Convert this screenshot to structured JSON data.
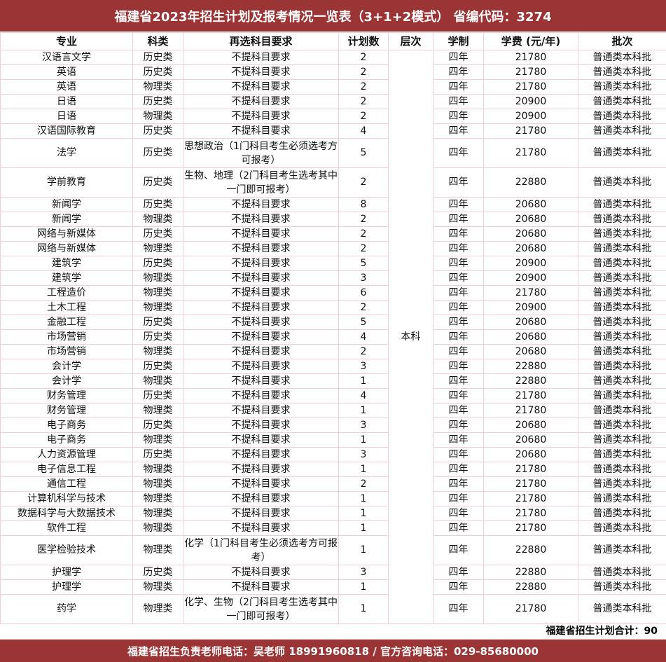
{
  "title": "福建省2023年招生计划及报考情况一览表（3+1+2模式） 省编代码：3274",
  "headers": [
    "专业",
    "科类",
    "再选科目要求",
    "计划数",
    "层次",
    "学制",
    "学费 (元/年)",
    "批次"
  ],
  "level": "本科",
  "rows": [
    [
      "汉语言文学",
      "历史类",
      "不提科目要求",
      "2",
      "四年",
      "21780",
      "普通类本科批"
    ],
    [
      "英语",
      "历史类",
      "不提科目要求",
      "2",
      "四年",
      "21780",
      "普通类本科批"
    ],
    [
      "英语",
      "物理类",
      "不提科目要求",
      "2",
      "四年",
      "21780",
      "普通类本科批"
    ],
    [
      "日语",
      "历史类",
      "不提科目要求",
      "2",
      "四年",
      "20900",
      "普通类本科批"
    ],
    [
      "日语",
      "物理类",
      "不提科目要求",
      "2",
      "四年",
      "20900",
      "普通类本科批"
    ],
    [
      "汉语国际教育",
      "历史类",
      "不提科目要求",
      "4",
      "四年",
      "21780",
      "普通类本科批"
    ],
    [
      "法学",
      "历史类",
      "思想政治（1门科目考生必须选考方可报考）",
      "5",
      "四年",
      "21780",
      "普通类本科批"
    ],
    [
      "学前教育",
      "历史类",
      "生物、地理（2门科目考生选考其中一门即可报考）",
      "2",
      "四年",
      "22880",
      "普通类本科批"
    ],
    [
      "新闻学",
      "历史类",
      "不提科目要求",
      "8",
      "四年",
      "20680",
      "普通类本科批"
    ],
    [
      "新闻学",
      "物理类",
      "不提科目要求",
      "2",
      "四年",
      "20680",
      "普通类本科批"
    ],
    [
      "网络与新媒体",
      "历史类",
      "不提科目要求",
      "2",
      "四年",
      "20680",
      "普通类本科批"
    ],
    [
      "网络与新媒体",
      "物理类",
      "不提科目要求",
      "2",
      "四年",
      "20680",
      "普通类本科批"
    ],
    [
      "建筑学",
      "历史类",
      "不提科目要求",
      "5",
      "四年",
      "20900",
      "普通类本科批"
    ],
    [
      "建筑学",
      "物理类",
      "不提科目要求",
      "3",
      "四年",
      "20900",
      "普通类本科批"
    ],
    [
      "工程造价",
      "物理类",
      "不提科目要求",
      "6",
      "四年",
      "21780",
      "普通类本科批"
    ],
    [
      "土木工程",
      "物理类",
      "不提科目要求",
      "2",
      "四年",
      "20900",
      "普通类本科批"
    ],
    [
      "金融工程",
      "历史类",
      "不提科目要求",
      "5",
      "四年",
      "20680",
      "普通类本科批"
    ],
    [
      "市场营销",
      "历史类",
      "不提科目要求",
      "4",
      "四年",
      "20680",
      "普通类本科批"
    ],
    [
      "市场营销",
      "物理类",
      "不提科目要求",
      "2",
      "四年",
      "20680",
      "普通类本科批"
    ],
    [
      "会计学",
      "历史类",
      "不提科目要求",
      "3",
      "四年",
      "22880",
      "普通类本科批"
    ],
    [
      "会计学",
      "物理类",
      "不提科目要求",
      "1",
      "四年",
      "22880",
      "普通类本科批"
    ],
    [
      "财务管理",
      "历史类",
      "不提科目要求",
      "4",
      "四年",
      "21780",
      "普通类本科批"
    ],
    [
      "财务管理",
      "物理类",
      "不提科目要求",
      "1",
      "四年",
      "21780",
      "普通类本科批"
    ],
    [
      "电子商务",
      "历史类",
      "不提科目要求",
      "3",
      "四年",
      "20680",
      "普通类本科批"
    ],
    [
      "电子商务",
      "物理类",
      "不提科目要求",
      "1",
      "四年",
      "20680",
      "普通类本科批"
    ],
    [
      "人力资源管理",
      "历史类",
      "不提科目要求",
      "3",
      "四年",
      "20680",
      "普通类本科批"
    ],
    [
      "电子信息工程",
      "物理类",
      "不提科目要求",
      "1",
      "四年",
      "21780",
      "普通类本科批"
    ],
    [
      "通信工程",
      "物理类",
      "不提科目要求",
      "2",
      "四年",
      "21780",
      "普通类本科批"
    ],
    [
      "计算机科学与技术",
      "物理类",
      "不提科目要求",
      "1",
      "四年",
      "21780",
      "普通类本科批"
    ],
    [
      "数据科学与大数据技术",
      "物理类",
      "不提科目要求",
      "1",
      "四年",
      "21780",
      "普通类本科批"
    ],
    [
      "软件工程",
      "物理类",
      "不提科目要求",
      "1",
      "四年",
      "21780",
      "普通类本科批"
    ],
    [
      "医学检验技术",
      "物理类",
      "化学（1门科目考生必须选考方可报考）",
      "1",
      "四年",
      "22880",
      "普通类本科批"
    ],
    [
      "护理学",
      "历史类",
      "不提科目要求",
      "3",
      "四年",
      "22880",
      "普通类本科批"
    ],
    [
      "护理学",
      "物理类",
      "不提科目要求",
      "1",
      "四年",
      "22880",
      "普通类本科批"
    ],
    [
      "药学",
      "物理类",
      "化学、生物（2门科目考生选考其中一门即可报考）",
      "1",
      "四年",
      "21780",
      "普通类本科批"
    ]
  ],
  "total": "福建省招生计划合计：90",
  "footer": "福建省招生负责老师电话：吴老师 18991960818  /  官方咨询电话：029-85680000"
}
